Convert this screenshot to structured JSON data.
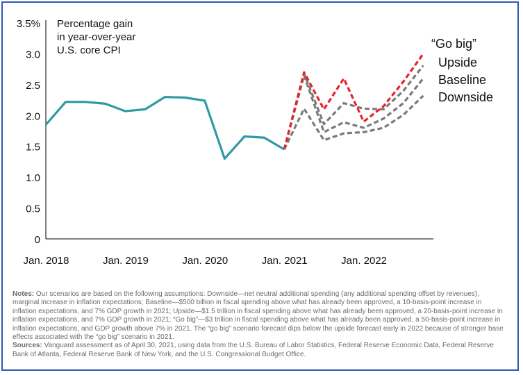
{
  "chart_data": {
    "type": "line",
    "title": "Percentage gain in year-over-year U.S. core CPI",
    "title_lines": [
      "Percentage gain",
      "in year-over-year",
      "U.S. core CPI"
    ],
    "ylim": [
      0,
      3.5
    ],
    "yticks": [
      {
        "v": 0,
        "label": "0"
      },
      {
        "v": 0.5,
        "label": "0.5"
      },
      {
        "v": 1.0,
        "label": "1.0"
      },
      {
        "v": 1.5,
        "label": "1.5"
      },
      {
        "v": 2.0,
        "label": "2.0"
      },
      {
        "v": 2.5,
        "label": "2.5"
      },
      {
        "v": 3.0,
        "label": "3.0"
      },
      {
        "v": 3.5,
        "label": "3.5%"
      }
    ],
    "xticks": [
      "Jan. 2018",
      "Jan. 2019",
      "Jan. 2020",
      "Jan. 2021",
      "Jan. 2022"
    ],
    "x_quarters": [
      "Q1 2018",
      "Q2 2018",
      "Q3 2018",
      "Q4 2018",
      "Q1 2019",
      "Q2 2019",
      "Q3 2019",
      "Q4 2019",
      "Q1 2020",
      "Q2 2020",
      "Q3 2020",
      "Q4 2020",
      "Q1 2021",
      "Q2 2021",
      "Q3 2021",
      "Q4 2021",
      "Q1 2022",
      "Q2 2022",
      "Q3 2022",
      "Q4 2022"
    ],
    "series": [
      {
        "name": "",
        "style": "solid",
        "color": "#2e9aa6",
        "values": [
          1.85,
          2.22,
          2.22,
          2.19,
          2.07,
          2.1,
          2.3,
          2.29,
          2.24,
          1.3,
          1.66,
          1.64,
          1.45,
          null,
          null,
          null,
          null,
          null,
          null,
          null
        ]
      },
      {
        "name": "Downside",
        "style": "dashed",
        "color": "#7a7a7a",
        "values": [
          null,
          null,
          null,
          null,
          null,
          null,
          null,
          null,
          null,
          null,
          null,
          null,
          1.45,
          2.11,
          1.6,
          1.71,
          1.73,
          1.8,
          2.01,
          2.32
        ]
      },
      {
        "name": "Baseline",
        "style": "dashed",
        "color": "#7a7a7a",
        "values": [
          null,
          null,
          null,
          null,
          null,
          null,
          null,
          null,
          null,
          null,
          null,
          null,
          1.45,
          2.65,
          1.73,
          1.89,
          1.8,
          1.95,
          2.2,
          2.6
        ]
      },
      {
        "name": "Upside",
        "style": "dashed",
        "color": "#7a7a7a",
        "values": [
          null,
          null,
          null,
          null,
          null,
          null,
          null,
          null,
          null,
          null,
          null,
          null,
          1.45,
          2.68,
          1.86,
          2.2,
          2.11,
          2.1,
          2.4,
          2.81
        ]
      },
      {
        "name": "“Go big”",
        "style": "dashed",
        "color": "#e8222c",
        "values": [
          null,
          null,
          null,
          null,
          null,
          null,
          null,
          null,
          null,
          null,
          null,
          null,
          1.45,
          2.7,
          2.1,
          2.6,
          1.9,
          2.15,
          2.55,
          3.0
        ]
      }
    ],
    "grid": false,
    "legend": "right"
  },
  "notes": {
    "notes_label": "Notes:",
    "notes_text": " Our scenarios are based on the following assumptions:  Downside—net neutral additional spending (any additional spending offset by revenues), marginal increase in inflation expectations; Baseline—$500 billion in fiscal spending above what has already been approved, a 10-basis-point increase in inflation expectations, and 7% GDP growth in 2021; Upside—$1.5 trillion in fiscal spending above what has already been approved, a 20-basis-point increase in inflation expectations, and 7% GDP growth in 2021; “Go big”—$3 trillion in fiscal spending above what has already been approved, a 50-basis-point increase in inflation expectations, and GDP growth above 7% in 2021. The “go big” scenario forecast dips below the upside forecast early in 2022 because of stronger base effects associated with the “go big” scenario in 2021.",
    "sources_label": "Sources:",
    "sources_text": " Vanguard assessment as of April 30, 2021, using data from the U.S. Bureau of Labor Statistics, Federal Reserve Economic Data, Federal Reserve Bank of Atlanta, Federal Reserve Bank of New York, and the U.S. Congressional Budget Office."
  }
}
